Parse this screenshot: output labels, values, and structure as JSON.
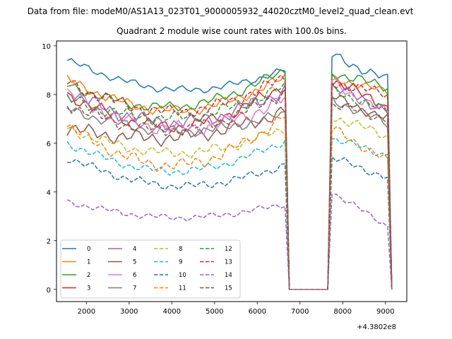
{
  "chart_data": {
    "type": "line",
    "suptitle": "Data from file: modeM0/AS1A13_023T01_9000005932_44020cztM0_level2_quad_clean.evt",
    "title": "Quadrant 2 module wise count rates with 100.0s bins.",
    "xlabel": "",
    "ylabel": "",
    "x_offset_label": "+4.3802e8",
    "xlim": [
      1300,
      9500
    ],
    "ylim": [
      -0.5,
      10.2
    ],
    "xticks": [
      2000,
      3000,
      4000,
      5000,
      6000,
      7000,
      8000,
      9000
    ],
    "yticks": [
      0,
      2,
      4,
      6,
      8,
      10
    ],
    "x_start": 1550,
    "bin": 100,
    "n_bins": 77,
    "gap": {
      "from": 6850,
      "to": 7650,
      "value": 0
    },
    "legend": {
      "location": "lower-left",
      "columns": 4
    },
    "series": [
      {
        "name": "0",
        "color": "#1f77b4",
        "style": "solid",
        "segments": [
          {
            "x_from": 1550,
            "x_to": 6650,
            "start": 9.4,
            "end": 9.0,
            "dip": 1.0,
            "noise": 0.18
          },
          {
            "x_from": 7750,
            "x_to": 9050,
            "start": 9.6,
            "end": 8.6,
            "dip": 0.0,
            "noise": 0.25
          }
        ]
      },
      {
        "name": "1",
        "color": "#ff7f0e",
        "style": "solid",
        "segments": [
          {
            "x_from": 1550,
            "x_to": 6650,
            "start": 8.6,
            "end": 8.7,
            "dip": 1.3,
            "noise": 0.25
          },
          {
            "x_from": 7750,
            "x_to": 9050,
            "start": 8.7,
            "end": 8.1,
            "dip": 0.0,
            "noise": 0.2
          }
        ]
      },
      {
        "name": "2",
        "color": "#2ca02c",
        "style": "solid",
        "segments": [
          {
            "x_from": 1550,
            "x_to": 6650,
            "start": 8.4,
            "end": 9.0,
            "dip": 1.2,
            "noise": 0.25
          },
          {
            "x_from": 7750,
            "x_to": 9050,
            "start": 8.9,
            "end": 8.3,
            "dip": 0.0,
            "noise": 0.25
          }
        ]
      },
      {
        "name": "3",
        "color": "#d62728",
        "style": "solid",
        "segments": [
          {
            "x_from": 1550,
            "x_to": 6650,
            "start": 8.0,
            "end": 8.4,
            "dip": 1.5,
            "noise": 0.3
          },
          {
            "x_from": 7750,
            "x_to": 9050,
            "start": 8.6,
            "end": 7.5,
            "dip": 0.0,
            "noise": 0.3
          }
        ]
      },
      {
        "name": "4",
        "color": "#9467bd",
        "style": "solid",
        "segments": [
          {
            "x_from": 1550,
            "x_to": 6650,
            "start": 8.1,
            "end": 8.2,
            "dip": 1.3,
            "noise": 0.35
          },
          {
            "x_from": 7750,
            "x_to": 9050,
            "start": 8.3,
            "end": 7.4,
            "dip": 0.0,
            "noise": 0.3
          }
        ]
      },
      {
        "name": "5",
        "color": "#8c564b",
        "style": "solid",
        "segments": [
          {
            "x_from": 1550,
            "x_to": 6650,
            "start": 6.6,
            "end": 7.3,
            "dip": 0.7,
            "noise": 0.35
          },
          {
            "x_from": 7750,
            "x_to": 9050,
            "start": 7.9,
            "end": 7.0,
            "dip": 0.0,
            "noise": 0.25
          }
        ]
      },
      {
        "name": "6",
        "color": "#e377c2",
        "style": "solid",
        "segments": [
          {
            "x_from": 1550,
            "x_to": 6650,
            "start": 8.0,
            "end": 7.8,
            "dip": 1.3,
            "noise": 0.35
          },
          {
            "x_from": 7750,
            "x_to": 9050,
            "start": 8.5,
            "end": 7.2,
            "dip": 0.0,
            "noise": 0.3
          }
        ]
      },
      {
        "name": "7",
        "color": "#7f7f7f",
        "style": "solid",
        "segments": [
          {
            "x_from": 1550,
            "x_to": 6650,
            "start": 7.4,
            "end": 7.2,
            "dip": 0.8,
            "noise": 0.25
          },
          {
            "x_from": 7750,
            "x_to": 9050,
            "start": 7.8,
            "end": 6.8,
            "dip": 0.0,
            "noise": 0.25
          }
        ]
      },
      {
        "name": "8",
        "color": "#bcbd22",
        "style": "dashed",
        "segments": [
          {
            "x_from": 1550,
            "x_to": 6650,
            "start": 6.6,
            "end": 6.6,
            "dip": 1.0,
            "noise": 0.25
          },
          {
            "x_from": 7750,
            "x_to": 9050,
            "start": 7.1,
            "end": 6.3,
            "dip": 0.0,
            "noise": 0.25
          }
        ]
      },
      {
        "name": "9",
        "color": "#17becf",
        "style": "dashed",
        "segments": [
          {
            "x_from": 1550,
            "x_to": 6650,
            "start": 6.0,
            "end": 6.1,
            "dip": 1.2,
            "noise": 0.2
          },
          {
            "x_from": 7750,
            "x_to": 9050,
            "start": 6.2,
            "end": 5.5,
            "dip": 0.0,
            "noise": 0.2
          }
        ]
      },
      {
        "name": "10",
        "color": "#1f77b4",
        "style": "dashed",
        "segments": [
          {
            "x_from": 1550,
            "x_to": 6650,
            "start": 5.4,
            "end": 5.1,
            "dip": 1.0,
            "noise": 0.2
          },
          {
            "x_from": 7750,
            "x_to": 9050,
            "start": 5.4,
            "end": 4.6,
            "dip": 0.0,
            "noise": 0.2
          }
        ]
      },
      {
        "name": "11",
        "color": "#ff7f0e",
        "style": "dashed",
        "segments": [
          {
            "x_from": 1550,
            "x_to": 6650,
            "start": 6.7,
            "end": 7.1,
            "dip": 1.8,
            "noise": 0.3
          },
          {
            "x_from": 7750,
            "x_to": 9050,
            "start": 6.6,
            "end": 5.3,
            "dip": 0.0,
            "noise": 0.25
          }
        ]
      },
      {
        "name": "12",
        "color": "#2ca02c",
        "style": "dashed",
        "segments": [
          {
            "x_from": 1550,
            "x_to": 6650,
            "start": 7.8,
            "end": 8.3,
            "dip": 1.0,
            "noise": 0.3
          },
          {
            "x_from": 7750,
            "x_to": 9050,
            "start": 8.2,
            "end": 7.3,
            "dip": 0.0,
            "noise": 0.25
          }
        ]
      },
      {
        "name": "13",
        "color": "#d62728",
        "style": "dashed",
        "segments": [
          {
            "x_from": 1550,
            "x_to": 6650,
            "start": 8.5,
            "end": 8.7,
            "dip": 1.3,
            "noise": 0.3
          },
          {
            "x_from": 7750,
            "x_to": 9050,
            "start": 8.5,
            "end": 8.0,
            "dip": 0.0,
            "noise": 0.25
          }
        ]
      },
      {
        "name": "14",
        "color": "#9467bd",
        "style": "dashed",
        "segments": [
          {
            "x_from": 1550,
            "x_to": 6650,
            "start": 3.6,
            "end": 3.5,
            "dip": 0.6,
            "noise": 0.15
          },
          {
            "x_from": 7750,
            "x_to": 9050,
            "start": 4.0,
            "end": 2.6,
            "dip": 0.0,
            "noise": 0.15
          }
        ]
      },
      {
        "name": "15",
        "color": "#8c564b",
        "style": "dashed",
        "segments": [
          {
            "x_from": 1550,
            "x_to": 6650,
            "start": 7.6,
            "end": 8.1,
            "dip": 1.3,
            "noise": 0.3
          },
          {
            "x_from": 7750,
            "x_to": 9050,
            "start": 7.6,
            "end": 7.0,
            "dip": 0.0,
            "noise": 0.25
          }
        ]
      }
    ]
  }
}
